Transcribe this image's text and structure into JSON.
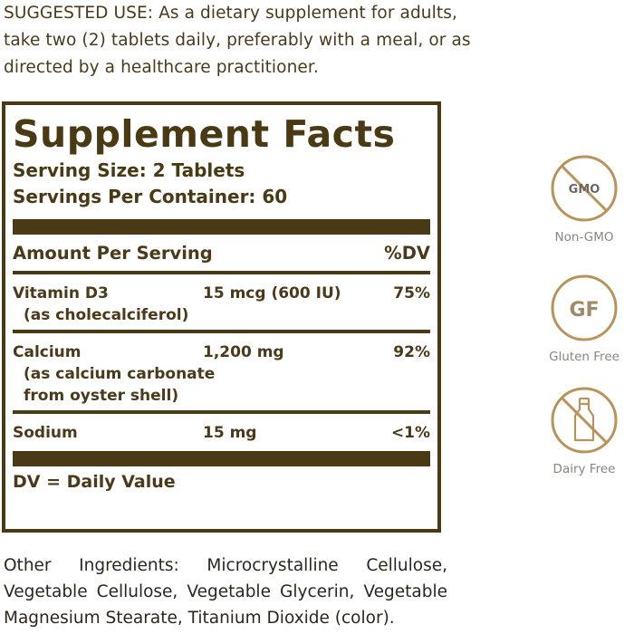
{
  "suggested_use": "SUGGESTED USE: As a dietary supplement for adults, take two (2) tablets daily, preferably with a meal, or as directed by a healthcare practitioner.",
  "facts": {
    "title": "Supplement Facts",
    "serving_size": "Serving Size: 2 Tablets",
    "servings_per_container": "Servings Per Container: 60",
    "amount_header": "Amount Per Serving",
    "dv_header": "%DV",
    "nutrients": [
      {
        "name": "Vitamin D3",
        "amount": "15 mcg (600 IU)",
        "dv": "75%",
        "sub": [
          "(as cholecalciferol)"
        ]
      },
      {
        "name": "Calcium",
        "amount": "1,200 mg",
        "dv": "92%",
        "sub": [
          "(as calcium carbonate",
          "from oyster shell)"
        ]
      },
      {
        "name": "Sodium",
        "amount": "15 mg",
        "dv": "<1%",
        "sub": []
      }
    ],
    "footnote": "DV = Daily Value"
  },
  "other_ingredients": "Other Ingredients: Microcrystalline Cellulose, Vegetable Cellulose, Vegetable Glycerin, Vegetable Magnesium Stearate, Titanium Dioxide (color).",
  "badges": [
    {
      "icon": "non-gmo-icon",
      "icon_text": "GMO",
      "label": "Non-GMO"
    },
    {
      "icon": "gluten-free-icon",
      "icon_text": "GF",
      "label": "Gluten Free"
    },
    {
      "icon": "dairy-free-icon",
      "icon_text": "",
      "label": "Dairy Free"
    }
  ],
  "colors": {
    "panel_brown": "#4a3a14",
    "badge_gold": "#b8945a",
    "badge_label_gray": "#8b8580"
  }
}
